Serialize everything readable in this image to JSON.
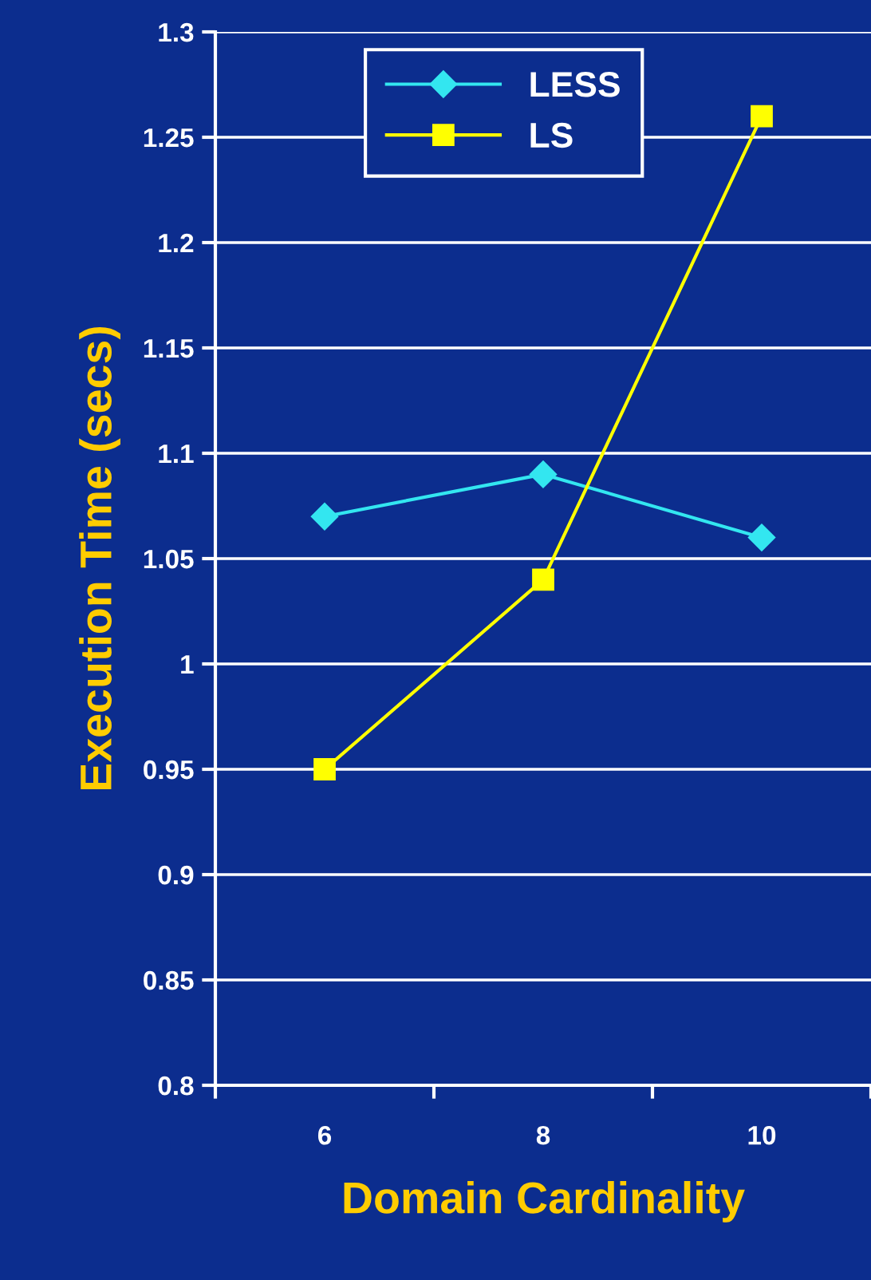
{
  "chart_data": {
    "type": "line",
    "xlabel": "Domain Cardinality",
    "ylabel": "Execution Time (secs)",
    "categories": [
      "6",
      "8",
      "10"
    ],
    "series": [
      {
        "name": "LESS",
        "color": "#33e6f0",
        "marker": "diamond",
        "values": [
          1.07,
          1.09,
          1.06
        ]
      },
      {
        "name": "LS",
        "color": "#ffff00",
        "marker": "square",
        "values": [
          0.95,
          1.04,
          1.26
        ]
      }
    ],
    "ylim": [
      0.8,
      1.3
    ],
    "yticks": [
      0.8,
      0.85,
      0.9,
      0.95,
      1,
      1.05,
      1.1,
      1.15,
      1.2,
      1.25,
      1.3
    ],
    "grid": "y",
    "legend": "top",
    "line_style": "solid"
  }
}
